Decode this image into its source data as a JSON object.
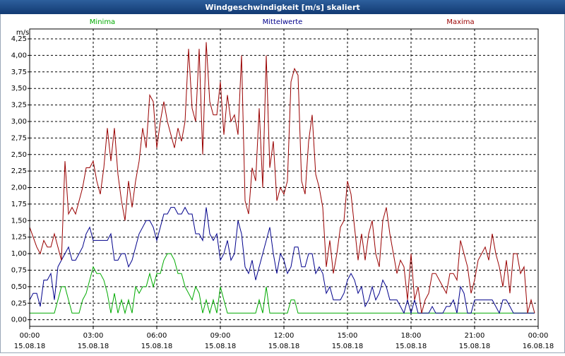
{
  "chart_data": {
    "type": "line",
    "title": "Windgeschwindigkeit [m/s] skaliert",
    "y_label": "m/s",
    "x": [
      0,
      10,
      20,
      30,
      40,
      50,
      60,
      70,
      80,
      90,
      100,
      110,
      120,
      130,
      140,
      150,
      160,
      170,
      180,
      190,
      200,
      210,
      220,
      230,
      240,
      250,
      260,
      270,
      280,
      290,
      300,
      310,
      320,
      330,
      340,
      350,
      360,
      370,
      380,
      390,
      400,
      410,
      420,
      430,
      440,
      450,
      460,
      470,
      480,
      490,
      500,
      510,
      520,
      530,
      540,
      550,
      560,
      570,
      580,
      590,
      600,
      610,
      620,
      630,
      640,
      650,
      660,
      670,
      680,
      690,
      700,
      710,
      720,
      730,
      740,
      750,
      760,
      770,
      780,
      790,
      800,
      810,
      820,
      830,
      840,
      850,
      860,
      870,
      880,
      890,
      900,
      910,
      920,
      930,
      940,
      950,
      960,
      970,
      980,
      990,
      1000,
      1010,
      1020,
      1030,
      1040,
      1050,
      1060,
      1070,
      1080,
      1090,
      1100,
      1110,
      1120,
      1130,
      1140,
      1150,
      1160,
      1170,
      1180,
      1190,
      1200,
      1210,
      1220,
      1230,
      1240,
      1250,
      1260,
      1270,
      1280,
      1290,
      1300,
      1310,
      1320,
      1330,
      1340,
      1350,
      1360,
      1370,
      1380,
      1390,
      1400,
      1410,
      1420,
      1430
    ],
    "series": [
      {
        "name": "Minima",
        "color": "#00aa00",
        "values": [
          0.1,
          0.1,
          0.1,
          0.1,
          0.1,
          0.1,
          0.1,
          0.1,
          0.3,
          0.5,
          0.5,
          0.3,
          0.1,
          0.1,
          0.1,
          0.3,
          0.4,
          0.6,
          0.8,
          0.7,
          0.7,
          0.6,
          0.4,
          0.1,
          0.4,
          0.1,
          0.3,
          0.1,
          0.3,
          0.1,
          0.5,
          0.4,
          0.5,
          0.5,
          0.7,
          0.5,
          0.7,
          0.7,
          0.9,
          1.0,
          1.0,
          0.9,
          0.7,
          0.7,
          0.5,
          0.4,
          0.3,
          0.5,
          0.4,
          0.1,
          0.3,
          0.1,
          0.3,
          0.1,
          0.5,
          0.3,
          0.1,
          0.1,
          0.1,
          0.1,
          0.1,
          0.1,
          0.1,
          0.1,
          0.1,
          0.3,
          0.1,
          0.5,
          0.1,
          0.1,
          0.1,
          0.1,
          0.1,
          0.1,
          0.3,
          0.3,
          0.1,
          0.1,
          0.1,
          0.1,
          0.1,
          0.1,
          0.1,
          0.1,
          0.1,
          0.1,
          0.1,
          0.1,
          0.1,
          0.1,
          0.1,
          0.1,
          0.1,
          0.1,
          0.1,
          0.1,
          0.1,
          0.1,
          0.1,
          0.1,
          0.1,
          0.1,
          0.1,
          0.1,
          0.1,
          0.1,
          0.1,
          0.1,
          0.1,
          0.1,
          0.1,
          0.1,
          0.1,
          0.1,
          0.1,
          0.1,
          0.1,
          0.1,
          0.1,
          0.1,
          0.1,
          0.1,
          0.1,
          0.1,
          0.1,
          0.1,
          0.1,
          0.1,
          0.1,
          0.1,
          0.1,
          0.1,
          0.1,
          0.1,
          0.1,
          0.1,
          0.1,
          0.1,
          0.1,
          0.1,
          0.1,
          0.1,
          0.1,
          0.1
        ]
      },
      {
        "name": "Mittelwerte",
        "color": "#00008b",
        "values": [
          0.3,
          0.4,
          0.4,
          0.2,
          0.6,
          0.6,
          0.7,
          0.3,
          0.8,
          0.9,
          1.0,
          1.1,
          0.9,
          0.9,
          1.0,
          1.1,
          1.3,
          1.4,
          1.2,
          1.2,
          1.2,
          1.2,
          1.2,
          1.3,
          0.9,
          0.9,
          1.0,
          1.0,
          0.8,
          0.9,
          1.1,
          1.3,
          1.4,
          1.5,
          1.5,
          1.4,
          1.2,
          1.4,
          1.6,
          1.6,
          1.7,
          1.7,
          1.6,
          1.6,
          1.7,
          1.6,
          1.6,
          1.3,
          1.3,
          1.2,
          1.7,
          1.3,
          1.2,
          1.3,
          0.9,
          1.0,
          1.2,
          0.9,
          1.0,
          1.5,
          1.3,
          0.8,
          0.7,
          0.9,
          0.6,
          0.8,
          1.0,
          1.2,
          1.4,
          1.0,
          0.7,
          1.0,
          0.9,
          0.7,
          0.8,
          1.1,
          1.1,
          0.8,
          0.8,
          1.0,
          1.0,
          0.7,
          0.8,
          0.7,
          0.4,
          0.5,
          0.3,
          0.3,
          0.3,
          0.4,
          0.6,
          0.7,
          0.6,
          0.4,
          0.5,
          0.2,
          0.3,
          0.5,
          0.3,
          0.4,
          0.6,
          0.5,
          0.3,
          0.3,
          0.3,
          0.2,
          0.1,
          0.3,
          0.1,
          0.3,
          0.1,
          0.1,
          0.1,
          0.1,
          0.2,
          0.1,
          0.1,
          0.1,
          0.2,
          0.2,
          0.3,
          0.1,
          0.5,
          0.4,
          0.1,
          0.1,
          0.3,
          0.3,
          0.3,
          0.3,
          0.3,
          0.3,
          0.2,
          0.1,
          0.3,
          0.3,
          0.2,
          0.1,
          0.1,
          0.1,
          0.1,
          0.1,
          0.1,
          0.1
        ]
      },
      {
        "name": "Maxima",
        "color": "#990000",
        "values": [
          1.4,
          1.25,
          1.1,
          1.0,
          1.2,
          1.1,
          1.1,
          1.3,
          1.1,
          0.9,
          2.4,
          1.6,
          1.7,
          1.6,
          1.8,
          2.0,
          2.3,
          2.3,
          2.4,
          2.1,
          1.9,
          2.3,
          2.9,
          2.4,
          2.9,
          2.2,
          1.8,
          1.5,
          2.1,
          1.7,
          2.1,
          2.4,
          2.9,
          2.6,
          3.4,
          3.3,
          2.6,
          3.0,
          3.3,
          3.0,
          2.8,
          2.6,
          2.9,
          2.7,
          3.0,
          4.1,
          3.2,
          3.0,
          4.1,
          2.5,
          4.2,
          3.3,
          3.1,
          3.1,
          3.6,
          2.8,
          3.4,
          3.0,
          3.1,
          2.8,
          4.0,
          1.8,
          1.6,
          2.3,
          2.1,
          3.2,
          2.0,
          4.0,
          2.3,
          2.7,
          1.8,
          2.0,
          1.9,
          2.1,
          3.6,
          3.8,
          3.7,
          2.1,
          1.9,
          2.7,
          3.1,
          2.2,
          2.0,
          1.7,
          0.8,
          1.2,
          0.7,
          1.0,
          1.4,
          1.5,
          2.1,
          1.9,
          1.4,
          0.9,
          1.3,
          0.9,
          1.3,
          1.5,
          1.0,
          0.8,
          1.5,
          1.7,
          1.3,
          1.0,
          0.7,
          0.9,
          0.8,
          0.3,
          1.0,
          0.3,
          0.5,
          0.1,
          0.3,
          0.4,
          0.7,
          0.7,
          0.6,
          0.5,
          0.4,
          0.7,
          0.7,
          0.6,
          1.2,
          1.0,
          0.8,
          0.4,
          0.6,
          0.9,
          1.0,
          1.1,
          0.9,
          1.3,
          1.0,
          0.8,
          0.5,
          0.9,
          0.4,
          1.0,
          1.0,
          0.7,
          0.8,
          0.1,
          0.3,
          0.1
        ]
      }
    ],
    "xlim": [
      0,
      1440
    ],
    "xticks": [
      {
        "value": 0,
        "label": "00:00"
      },
      {
        "value": 180,
        "label": "03:00"
      },
      {
        "value": 360,
        "label": "06:00"
      },
      {
        "value": 540,
        "label": "09:00"
      },
      {
        "value": 720,
        "label": "12:00"
      },
      {
        "value": 900,
        "label": "15:00"
      },
      {
        "value": 1080,
        "label": "18:00"
      },
      {
        "value": 1260,
        "label": "21:00"
      },
      {
        "value": 1440,
        "label": "00:00"
      }
    ],
    "xtick_dates": [
      "15.08.18",
      "15.08.18",
      "15.08.18",
      "15.08.18",
      "15.08.18",
      "15.08.18",
      "15.08.18",
      "15.08.18",
      "16.08.18"
    ],
    "ylim": [
      -0.1,
      4.4
    ],
    "yticks": [
      {
        "value": 0,
        "label": "0,00"
      },
      {
        "value": 0.25,
        "label": "0,25"
      },
      {
        "value": 0.5,
        "label": "0,50"
      },
      {
        "value": 0.75,
        "label": "0,75"
      },
      {
        "value": 1,
        "label": "1,00"
      },
      {
        "value": 1.25,
        "label": "1,25"
      },
      {
        "value": 1.5,
        "label": "1,50"
      },
      {
        "value": 1.75,
        "label": "1,75"
      },
      {
        "value": 2,
        "label": "2,00"
      },
      {
        "value": 2.25,
        "label": "2,25"
      },
      {
        "value": 2.5,
        "label": "2,50"
      },
      {
        "value": 2.75,
        "label": "2,75"
      },
      {
        "value": 3,
        "label": "3,00"
      },
      {
        "value": 3.25,
        "label": "3,25"
      },
      {
        "value": 3.5,
        "label": "3,50"
      },
      {
        "value": 3.75,
        "label": "3,75"
      },
      {
        "value": 4,
        "label": "4,00"
      },
      {
        "value": 4.25,
        "label": "4,25"
      }
    ],
    "grid": true
  }
}
